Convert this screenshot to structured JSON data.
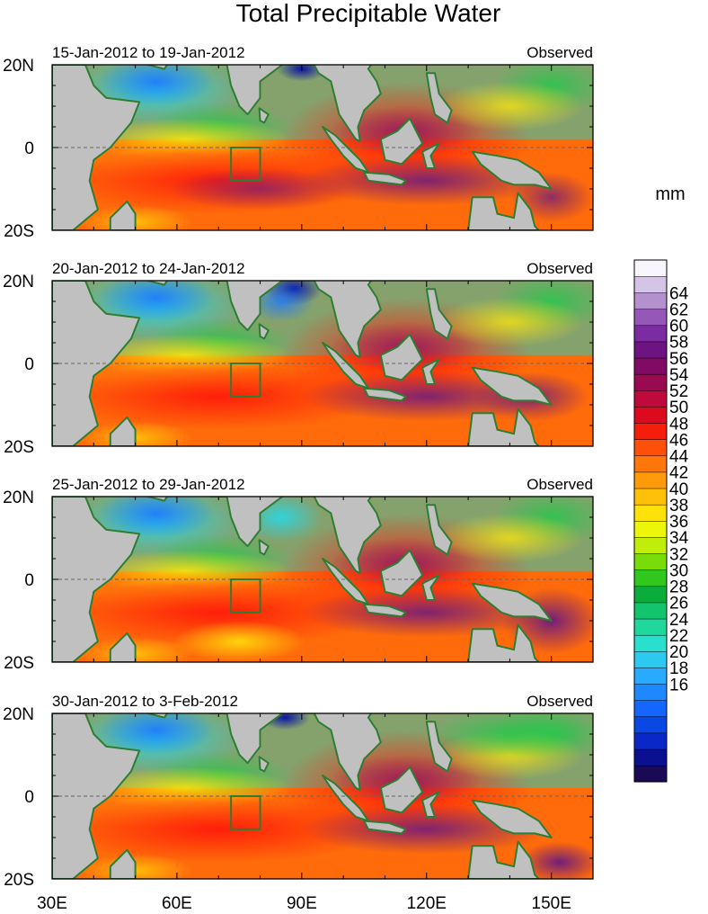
{
  "title": "Total Precipitable Water",
  "units": "mm",
  "panels": [
    {
      "period": "15-Jan-2012 to 19-Jan-2012",
      "tag": "Observed"
    },
    {
      "period": "20-Jan-2012 to 24-Jan-2012",
      "tag": "Observed"
    },
    {
      "period": "25-Jan-2012 to 29-Jan-2012",
      "tag": "Observed"
    },
    {
      "period": "30-Jan-2012 to 3-Feb-2012",
      "tag": "Observed"
    }
  ],
  "lat_labels": [
    "20N",
    "0",
    "20S"
  ],
  "lon_labels": [
    "30E",
    "60E",
    "90E",
    "120E",
    "150E"
  ],
  "colorbar": {
    "labels": [
      "64",
      "62",
      "60",
      "58",
      "56",
      "54",
      "52",
      "50",
      "48",
      "46",
      "44",
      "42",
      "40",
      "38",
      "36",
      "34",
      "32",
      "30",
      "28",
      "26",
      "24",
      "22",
      "20",
      "18",
      "16"
    ],
    "colors_low_to_high": [
      "#1a0a55",
      "#0a1090",
      "#0a28c8",
      "#0a48e6",
      "#1466ff",
      "#1e88ff",
      "#28aaff",
      "#2ccaf0",
      "#28e0cc",
      "#20d89c",
      "#12c46c",
      "#0aac3c",
      "#30c81e",
      "#78dc0a",
      "#c0ee0a",
      "#ecf60a",
      "#ffe20a",
      "#ffc00a",
      "#ff9a0a",
      "#ff760a",
      "#ff500a",
      "#f41e0a",
      "#dc0a1e",
      "#c00a3c",
      "#9a0a50",
      "#800a64",
      "#6e1482",
      "#7a2ca0",
      "#9658b8",
      "#b490cc",
      "#d4c4e6",
      "#f8f6fc"
    ]
  },
  "colors": {
    "land": "#c0c0c0",
    "coastline": "#2e7d32",
    "box": "#2e7d32",
    "equator": "#666666"
  }
}
